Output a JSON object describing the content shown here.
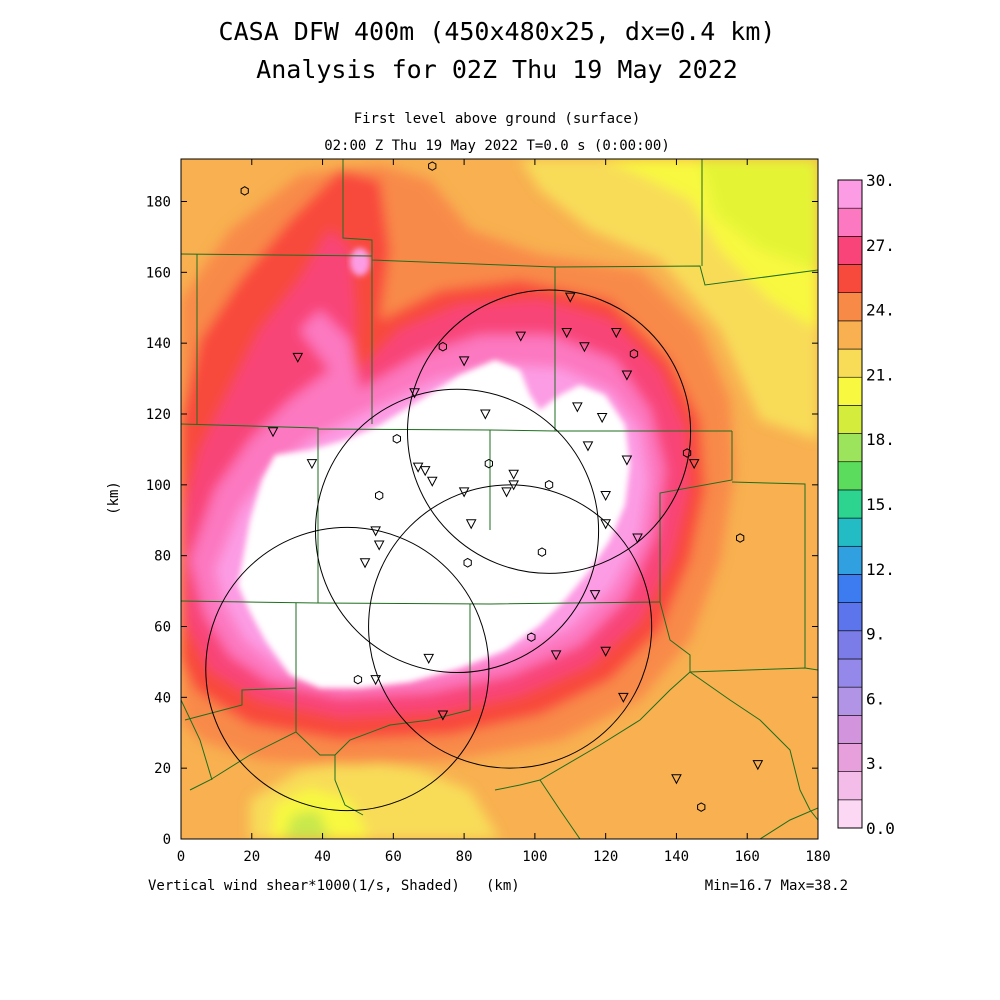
{
  "title_line1": "CASA DFW 400m (450x480x25, dx=0.4 km)",
  "title_line2": "Analysis for 02Z Thu 19 May 2022",
  "subtitle_line1": "First level above ground (surface)",
  "subtitle_line2": "02:00 Z Thu 19 May 2022   T=0.0 s (0:00:00)",
  "footer_left": "Vertical wind shear*1000(1/s, Shaded)",
  "footer_unit": "(km)",
  "footer_right": "Min=16.7 Max=38.2",
  "chart_data": {
    "type": "heatmap",
    "xlabel": "(km)",
    "ylabel": "(km)",
    "xlim": [
      0,
      180
    ],
    "ylim": [
      0,
      192
    ],
    "xticks": [
      0,
      20,
      40,
      60,
      80,
      100,
      120,
      140,
      160,
      180
    ],
    "yticks": [
      0,
      20,
      40,
      60,
      80,
      100,
      120,
      140,
      160,
      180
    ],
    "min": 16.7,
    "max": 38.2,
    "colorbar": {
      "levels": [
        0.0,
        1.5,
        3.0,
        4.5,
        6.0,
        7.5,
        9.0,
        10.5,
        12.0,
        13.5,
        15.0,
        16.5,
        18.0,
        19.5,
        21.0,
        22.5,
        24.0,
        25.5,
        27.0,
        28.5,
        30.0
      ],
      "tick_labels": [
        "0.0",
        "3.",
        "6.",
        "9.",
        "12.",
        "15.",
        "18.",
        "21.",
        "24.",
        "27.",
        "30."
      ],
      "tick_values": [
        0,
        3,
        6,
        9,
        12,
        15,
        18,
        21,
        24,
        27,
        30
      ],
      "colors": [
        "#fcd8f4",
        "#f4bce8",
        "#e8a0dc",
        "#d294dc",
        "#b294e6",
        "#9488ea",
        "#7c7ce8",
        "#5c74ec",
        "#3c7cf0",
        "#30a0e0",
        "#24bcc4",
        "#2cd490",
        "#5cdc5c",
        "#9ce45c",
        "#d4ec3c",
        "#f8f840",
        "#f8dc58",
        "#f8b050",
        "#f88a48",
        "#f84a3c",
        "#f84478",
        "#fc78c0",
        "#fc9ce4"
      ]
    },
    "radar_circles": [
      {
        "name": "radar-1",
        "center": [
          78,
          87
        ],
        "radius": 40
      },
      {
        "name": "radar-2",
        "center": [
          104,
          115
        ],
        "radius": 40
      },
      {
        "name": "radar-3",
        "center": [
          93,
          60
        ],
        "radius": 40
      },
      {
        "name": "radar-4",
        "center": [
          47,
          48
        ],
        "radius": 40
      }
    ],
    "stations_triangle": [
      [
        110,
        153
      ],
      [
        96,
        142
      ],
      [
        109,
        143
      ],
      [
        114,
        139
      ],
      [
        123,
        143
      ],
      [
        80,
        135
      ],
      [
        126,
        131
      ],
      [
        66,
        126
      ],
      [
        86,
        120
      ],
      [
        112,
        122
      ],
      [
        119,
        119
      ],
      [
        115,
        111
      ],
      [
        26,
        115
      ],
      [
        37,
        106
      ],
      [
        67,
        105
      ],
      [
        69,
        104
      ],
      [
        71,
        101
      ],
      [
        94,
        103
      ],
      [
        94,
        100
      ],
      [
        92,
        98
      ],
      [
        80,
        98
      ],
      [
        126,
        107
      ],
      [
        145,
        106
      ],
      [
        120,
        97
      ],
      [
        82,
        89
      ],
      [
        120,
        89
      ],
      [
        129,
        85
      ],
      [
        55,
        87
      ],
      [
        56,
        83
      ],
      [
        52,
        78
      ],
      [
        117,
        69
      ],
      [
        70,
        51
      ],
      [
        106,
        52
      ],
      [
        120,
        53
      ],
      [
        55,
        45
      ],
      [
        74,
        35
      ],
      [
        125,
        40
      ],
      [
        140,
        17
      ],
      [
        163,
        21
      ],
      [
        33,
        136
      ]
    ],
    "stations_circle": [
      [
        18,
        183
      ],
      [
        71,
        190
      ],
      [
        74,
        139
      ],
      [
        128,
        137
      ],
      [
        61,
        113
      ],
      [
        87,
        106
      ],
      [
        56,
        97
      ],
      [
        104,
        100
      ],
      [
        102,
        81
      ],
      [
        81,
        78
      ],
      [
        158,
        85
      ],
      [
        99,
        57
      ],
      [
        50,
        45
      ],
      [
        147,
        9
      ],
      [
        143,
        109
      ]
    ]
  }
}
